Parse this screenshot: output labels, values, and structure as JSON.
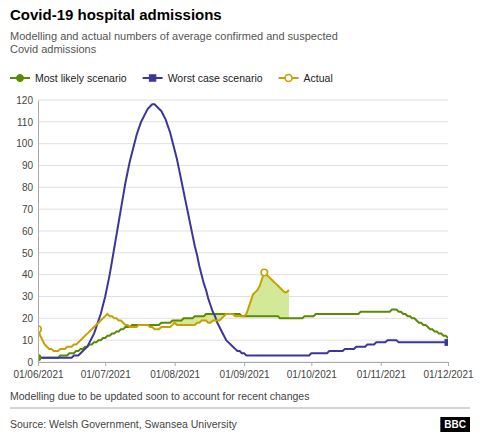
{
  "chart_data": {
    "type": "line",
    "title": "Covid-19 hospital admissions",
    "subtitle": "Modelling and actual numbers of average confirmed and suspected\nCovid admissions",
    "annotations": [
      "Modelling due to be updated soon to account for recent changes",
      "Source: Welsh Government, Swansea University",
      "BBC"
    ],
    "xlim": [
      0,
      183
    ],
    "xticks": [
      {
        "value": 0,
        "label": "01/06/2021"
      },
      {
        "value": 30,
        "label": "01/07/2021"
      },
      {
        "value": 61,
        "label": "01/08/2021"
      },
      {
        "value": 92,
        "label": "01/09/2021"
      },
      {
        "value": 122,
        "label": "01/10/2021"
      },
      {
        "value": 153,
        "label": "01/11/2021"
      },
      {
        "value": 183,
        "label": "01/12/2021"
      }
    ],
    "ylim": [
      0,
      120
    ],
    "yticks": [
      0,
      10,
      20,
      30,
      40,
      50,
      60,
      70,
      80,
      90,
      100,
      110,
      120
    ],
    "grid": true,
    "legend": "top",
    "fill": {
      "x": [
        60,
        112
      ],
      "color": "#d4e89a"
    },
    "series": [
      {
        "name": "Most likely scenario",
        "color": "#5a8a00",
        "marker": "circle",
        "values": [
          2,
          2,
          2,
          2,
          2,
          2,
          2,
          2,
          2,
          2,
          3,
          3,
          3,
          3,
          4,
          4,
          4,
          5,
          5,
          6,
          6,
          7,
          7,
          8,
          8,
          9,
          9,
          10,
          10,
          11,
          11,
          12,
          12,
          13,
          13,
          14,
          14,
          15,
          15,
          16,
          16,
          16,
          17,
          17,
          17,
          17,
          17,
          17,
          17,
          17,
          17,
          17,
          17,
          17,
          17,
          18,
          18,
          18,
          18,
          18,
          19,
          19,
          19,
          19,
          19,
          20,
          20,
          20,
          20,
          20,
          21,
          21,
          21,
          21,
          21,
          22,
          22,
          22,
          22,
          22,
          22,
          22,
          22,
          22,
          22,
          22,
          22,
          22,
          22,
          22,
          22,
          21,
          21,
          21,
          21,
          21,
          21,
          21,
          21,
          21,
          21,
          21,
          21,
          21,
          21,
          21,
          21,
          21,
          20,
          20,
          20,
          20,
          20,
          20,
          20,
          20,
          20,
          20,
          20,
          21,
          21,
          21,
          21,
          21,
          22,
          22,
          22,
          22,
          22,
          22,
          22,
          22,
          22,
          22,
          22,
          22,
          22,
          22,
          22,
          22,
          22,
          22,
          22,
          22,
          23,
          23,
          23,
          23,
          23,
          23,
          23,
          23,
          23,
          23,
          23,
          23,
          23,
          23,
          24,
          24,
          24,
          23,
          23,
          22,
          22,
          21,
          21,
          20,
          20,
          19,
          18,
          18,
          17,
          17,
          16,
          15,
          15,
          14,
          14,
          13,
          13,
          12,
          12,
          11
        ]
      },
      {
        "name": "Worst case scenario",
        "color": "#3b3699",
        "marker": "square",
        "values": [
          2,
          2,
          2,
          2,
          2,
          2,
          2,
          2,
          2,
          2,
          2,
          2,
          2,
          2,
          2,
          2,
          3,
          3,
          3,
          4,
          5,
          6,
          7,
          9,
          11,
          13,
          16,
          19,
          22,
          26,
          30,
          35,
          40,
          46,
          52,
          58,
          64,
          70,
          76,
          82,
          87,
          92,
          96,
          100,
          104,
          107,
          110,
          112,
          114,
          116,
          117,
          118,
          118,
          117,
          116,
          115,
          113,
          111,
          108,
          105,
          101,
          97,
          93,
          88,
          83,
          78,
          73,
          68,
          63,
          58,
          53,
          49,
          44,
          40,
          36,
          33,
          29,
          26,
          23,
          21,
          18,
          16,
          14,
          12,
          10,
          9,
          8,
          7,
          6,
          5,
          5,
          4,
          4,
          3,
          3,
          3,
          3,
          3,
          3,
          3,
          3,
          3,
          3,
          3,
          3,
          3,
          3,
          3,
          3,
          3,
          3,
          3,
          3,
          3,
          3,
          3,
          3,
          3,
          3,
          3,
          3,
          3,
          4,
          4,
          4,
          4,
          4,
          4,
          4,
          4,
          5,
          5,
          5,
          5,
          5,
          5,
          5,
          6,
          6,
          6,
          6,
          6,
          7,
          7,
          7,
          7,
          7,
          8,
          8,
          8,
          8,
          9,
          9,
          9,
          9,
          9,
          10,
          10,
          10,
          10,
          10,
          9,
          9,
          9,
          9,
          9,
          9,
          9,
          9,
          9,
          9,
          9,
          9,
          9,
          9,
          9,
          9,
          9,
          9,
          9,
          9,
          9,
          9,
          9
        ]
      },
      {
        "name": "Actual",
        "color": "#c8a000",
        "marker": "circle-open",
        "values": [
          15,
          12,
          10,
          8,
          7,
          6,
          6,
          5,
          5,
          5,
          6,
          6,
          6,
          7,
          7,
          7,
          8,
          8,
          9,
          10,
          11,
          12,
          13,
          14,
          15,
          16,
          17,
          18,
          19,
          20,
          21,
          22,
          21,
          21,
          20,
          20,
          19,
          19,
          18,
          17,
          17,
          16,
          16,
          16,
          16,
          17,
          17,
          17,
          17,
          17,
          16,
          16,
          15,
          15,
          15,
          16,
          16,
          16,
          16,
          16,
          17,
          18,
          17,
          17,
          17,
          17,
          17,
          17,
          17,
          17,
          17,
          18,
          18,
          19,
          19,
          19,
          18,
          18,
          19,
          19,
          19,
          19,
          20,
          21,
          22,
          22,
          22,
          22,
          21,
          21,
          21,
          21,
          21,
          22,
          25,
          28,
          31,
          32,
          33,
          35,
          38,
          41,
          40,
          39,
          38,
          37,
          36,
          35,
          34,
          33,
          32,
          32,
          33
        ]
      }
    ]
  }
}
